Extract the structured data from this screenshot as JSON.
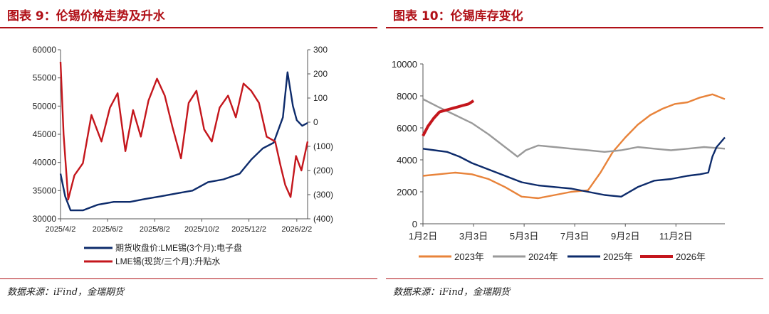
{
  "left": {
    "title": "图表 9：伦锡价格走势及升水",
    "source": "数据来源：iFind，金瑞期货"
  },
  "right": {
    "title": "图表 10：伦锡库存变化",
    "source": "数据来源：iFind，金瑞期货"
  },
  "colors": {
    "accent": "#b01017",
    "navy": "#0d2b6b",
    "red": "#c4161c",
    "orange": "#e8833a",
    "gray": "#9a9a9a"
  },
  "chart_data": [
    {
      "type": "line",
      "title": "图表 9：伦锡价格走势及升水",
      "x_ticks": [
        "2025/4/2",
        "2025/6/2",
        "2025/8/2",
        "2025/10/2",
        "2025/12/2",
        "2026/2/2"
      ],
      "x_range": [
        "2025/4/2",
        "2026/2/16"
      ],
      "y_left": {
        "ticks": [
          "60000",
          "55000",
          "50000",
          "45000",
          "40000",
          "35000",
          "30000"
        ],
        "ylim": [
          30000,
          60000
        ]
      },
      "y_right": {
        "ticks": [
          "300",
          "200",
          "100",
          "0",
          "(100)",
          "(200)",
          "(300)",
          "(400)"
        ],
        "ylim": [
          -400,
          300
        ]
      },
      "grid": false,
      "legend_position": "bottom",
      "series": [
        {
          "name": "期货收盘价:LME锡(3个月):电子盘",
          "color": "#0d2b6b",
          "axis": "left",
          "x": [
            "2025/4/2",
            "2025/4/8",
            "2025/4/15",
            "2025/5/1",
            "2025/5/20",
            "2025/6/10",
            "2025/7/1",
            "2025/7/20",
            "2025/8/10",
            "2025/8/30",
            "2025/9/20",
            "2025/10/10",
            "2025/10/30",
            "2025/11/20",
            "2025/12/5",
            "2025/12/20",
            "2026/1/3",
            "2026/1/15",
            "2026/1/21",
            "2026/1/28",
            "2026/2/2",
            "2026/2/9",
            "2026/2/16"
          ],
          "y": [
            38000,
            34000,
            31500,
            31500,
            32500,
            33000,
            33000,
            33500,
            34000,
            34500,
            35000,
            36500,
            37000,
            38000,
            40500,
            42500,
            43500,
            48000,
            56000,
            50000,
            47500,
            46500,
            47000
          ]
        },
        {
          "name": "LME锡(现货/三个月):升贴水",
          "color": "#c4161c",
          "axis": "right",
          "x": [
            "2025/4/2",
            "2025/4/6",
            "2025/4/12",
            "2025/4/20",
            "2025/5/1",
            "2025/5/12",
            "2025/5/25",
            "2025/6/5",
            "2025/6/15",
            "2025/6/25",
            "2025/7/5",
            "2025/7/15",
            "2025/7/25",
            "2025/8/5",
            "2025/8/15",
            "2025/8/25",
            "2025/9/5",
            "2025/9/15",
            "2025/9/25",
            "2025/10/5",
            "2025/10/15",
            "2025/10/25",
            "2025/11/5",
            "2025/11/15",
            "2025/11/25",
            "2025/12/5",
            "2025/12/15",
            "2025/12/25",
            "2026/1/5",
            "2026/1/12",
            "2026/1/18",
            "2026/1/25",
            "2026/2/1",
            "2026/2/8",
            "2026/2/16"
          ],
          "y": [
            250,
            -50,
            -320,
            -220,
            -170,
            30,
            -80,
            60,
            120,
            -120,
            50,
            -60,
            90,
            180,
            110,
            -20,
            -150,
            80,
            130,
            -30,
            -80,
            60,
            110,
            20,
            160,
            130,
            80,
            -60,
            -80,
            -180,
            -260,
            -310,
            -140,
            -200,
            -80
          ]
        }
      ]
    },
    {
      "type": "line",
      "title": "图表 10：伦锡库存变化",
      "x_ticks": [
        "1月2日",
        "3月3日",
        "5月3日",
        "7月3日",
        "9月2日",
        "11月2日"
      ],
      "x_unit": "day-of-year",
      "y_ticks": [
        "10000",
        "8000",
        "6000",
        "4000",
        "2000",
        "0"
      ],
      "ylim": [
        0,
        10000
      ],
      "grid": false,
      "legend_position": "bottom",
      "series": [
        {
          "name": "2023年",
          "color": "#e8833a",
          "x": [
            1,
            20,
            40,
            60,
            80,
            100,
            120,
            140,
            160,
            180,
            200,
            215,
            230,
            245,
            260,
            275,
            290,
            305,
            320,
            335,
            350,
            365
          ],
          "y": [
            3000,
            3100,
            3200,
            3100,
            2800,
            2300,
            1700,
            1600,
            1800,
            2000,
            2100,
            3200,
            4500,
            5400,
            6200,
            6800,
            7200,
            7500,
            7600,
            7900,
            8100,
            7800
          ]
        },
        {
          "name": "2024年",
          "color": "#9a9a9a",
          "x": [
            1,
            20,
            40,
            60,
            80,
            100,
            115,
            125,
            140,
            160,
            180,
            200,
            220,
            240,
            260,
            280,
            300,
            320,
            340,
            365
          ],
          "y": [
            7800,
            7300,
            6800,
            6300,
            5600,
            4800,
            4200,
            4600,
            4900,
            4800,
            4700,
            4600,
            4500,
            4600,
            4800,
            4700,
            4600,
            4700,
            4800,
            4700
          ]
        },
        {
          "name": "2025年",
          "color": "#0d2b6b",
          "x": [
            1,
            15,
            30,
            45,
            60,
            75,
            90,
            105,
            120,
            140,
            160,
            180,
            200,
            220,
            240,
            260,
            280,
            300,
            320,
            335,
            345,
            350,
            355,
            365
          ],
          "y": [
            4700,
            4600,
            4500,
            4200,
            3800,
            3500,
            3200,
            2900,
            2600,
            2400,
            2300,
            2200,
            2000,
            1800,
            1700,
            2300,
            2700,
            2800,
            3000,
            3100,
            3200,
            4200,
            4800,
            5400
          ]
        },
        {
          "name": "2026年",
          "color": "#c4161c",
          "x": [
            1,
            7,
            14,
            21,
            28,
            35,
            42,
            49,
            56,
            62
          ],
          "y": [
            5500,
            6100,
            6600,
            7000,
            7100,
            7200,
            7300,
            7400,
            7500,
            7700
          ]
        }
      ]
    }
  ]
}
